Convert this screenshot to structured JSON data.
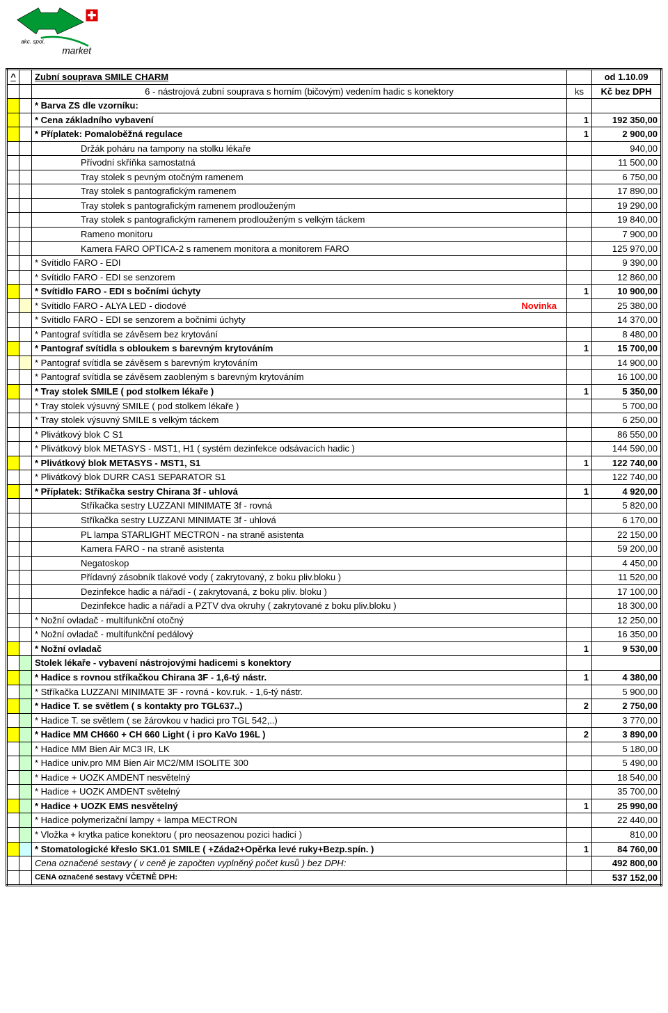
{
  "logo": {
    "top_text": "akc. spol.",
    "bottom_text": "market"
  },
  "colors": {
    "yellow": "#ffff00",
    "pale_yellow": "#ffffcc",
    "green_lt": "#ccffcc",
    "pale_blue": "#ccffff",
    "red": "#ff0000"
  },
  "header": {
    "caret": "^",
    "title": "Zubní souprava SMILE CHARM",
    "date": "od 1.10.09",
    "subtitle": "6 - nástrojová zubní souprava s horním (bičovým) vedením hadic s konektory",
    "unit": "ks",
    "price_label": "Kč bez DPH"
  },
  "novinka": "Novinka",
  "rows": [
    {
      "m1": "yellow",
      "m2": "",
      "desc": "* Barva ZS dle vzorníku:",
      "desc_bold": true,
      "qty": "",
      "price": ""
    },
    {
      "m1": "yellow",
      "m2": "",
      "desc": "* Cena základního vybavení",
      "desc_bold": true,
      "qty": "1",
      "price": "192 350,00",
      "bold": true
    },
    {
      "m1": "yellow",
      "m2": "",
      "desc": "* Příplatek:  Pomaloběžná regulace",
      "desc_bold": true,
      "qty": "1",
      "price": "2 900,00",
      "bold": true
    },
    {
      "m1": "",
      "m2": "",
      "desc": "Držák poháru na tampony na stolku lékaře",
      "indent": true,
      "qty": "",
      "price": "940,00"
    },
    {
      "m1": "",
      "m2": "",
      "desc": "Přívodní skříňka samostatná",
      "indent": true,
      "qty": "",
      "price": "11 500,00"
    },
    {
      "m1": "",
      "m2": "",
      "desc": "Tray stolek s pevným otočným ramenem",
      "indent": true,
      "qty": "",
      "price": "6 750,00"
    },
    {
      "m1": "",
      "m2": "",
      "desc": "Tray stolek s pantografickým ramenem",
      "indent": true,
      "qty": "",
      "price": "17 890,00"
    },
    {
      "m1": "",
      "m2": "",
      "desc": "Tray stolek s pantografickým ramenem prodlouženým",
      "indent": true,
      "qty": "",
      "price": "19 290,00"
    },
    {
      "m1": "",
      "m2": "",
      "desc": "Tray stolek s pantografickým ramenem prodlouženým s velkým táckem",
      "indent": true,
      "qty": "",
      "price": "19 840,00"
    },
    {
      "m1": "",
      "m2": "",
      "desc": "Rameno monitoru",
      "indent": true,
      "qty": "",
      "price": "7 900,00"
    },
    {
      "m1": "",
      "m2": "",
      "desc": "Kamera FARO OPTICA-2 s ramenem monitora a monitorem FARO",
      "indent": true,
      "qty": "",
      "price": "125 970,00"
    },
    {
      "m1": "",
      "m2": "",
      "desc": "* Svítidlo FARO - EDI",
      "qty": "",
      "price": "9 390,00"
    },
    {
      "m1": "",
      "m2": "",
      "desc": "* Svítidlo FARO - EDI se senzorem",
      "qty": "",
      "price": "12 860,00"
    },
    {
      "m1": "yellow",
      "m2": "",
      "desc": "* Svítidlo FARO - EDI s bočními úchyty",
      "desc_bold": true,
      "qty": "1",
      "price": "10 900,00",
      "bold": true
    },
    {
      "m1": "",
      "m2": "pale-yellow",
      "desc": "* Svítidlo FARO - ALYA LED - diodové",
      "novinka": true,
      "qty": "",
      "price": "25 380,00"
    },
    {
      "m1": "",
      "m2": "",
      "desc": "* Svítidlo FARO - EDI se senzorem a bočními úchyty",
      "qty": "",
      "price": "14 370,00"
    },
    {
      "m1": "",
      "m2": "",
      "desc": "* Pantograf svítidla se závěsem bez krytování",
      "qty": "",
      "price": "8 480,00"
    },
    {
      "m1": "yellow",
      "m2": "",
      "desc": "* Pantograf svítidla s obloukem s barevným krytováním",
      "desc_bold": true,
      "qty": "1",
      "price": "15 700,00",
      "bold": true
    },
    {
      "m1": "",
      "m2": "pale-yellow",
      "desc": "* Pantograf svítidla se závěsem s barevným krytováním",
      "qty": "",
      "price": "14 900,00"
    },
    {
      "m1": "",
      "m2": "",
      "desc": "* Pantograf svítidla se závěsem zaobleným s barevným krytováním",
      "qty": "",
      "price": "16 100,00"
    },
    {
      "m1": "yellow",
      "m2": "",
      "desc": "* Tray stolek SMILE ( pod stolkem lékaře )",
      "desc_bold": true,
      "qty": "1",
      "price": "5 350,00",
      "bold": true
    },
    {
      "m1": "",
      "m2": "",
      "desc": "* Tray stolek výsuvný SMILE ( pod stolkem lékaře )",
      "qty": "",
      "price": "5 700,00"
    },
    {
      "m1": "",
      "m2": "",
      "desc": "* Tray stolek výsuvný SMILE s velkým táckem",
      "qty": "",
      "price": "6 250,00"
    },
    {
      "m1": "",
      "m2": "",
      "desc": "* Plivátkový blok C S1",
      "qty": "",
      "price": "86 550,00"
    },
    {
      "m1": "",
      "m2": "",
      "desc": "* Plivátkový blok METASYS - MST1, H1 ( systém dezinfekce odsávacích hadic )",
      "qty": "",
      "price": "144 590,00"
    },
    {
      "m1": "yellow",
      "m2": "",
      "desc": "* Plivátkový blok METASYS - MST1, S1",
      "desc_bold": true,
      "qty": "1",
      "price": "122 740,00",
      "bold": true
    },
    {
      "m1": "",
      "m2": "",
      "desc": "* Plivátkový blok DURR CAS1 SEPARATOR S1",
      "qty": "",
      "price": "122 740,00"
    },
    {
      "m1": "yellow",
      "m2": "",
      "desc": "* Příplatek:  Stříkačka sestry Chirana 3f - uhlová",
      "desc_bold": true,
      "qty": "1",
      "price": "4 920,00",
      "bold": true
    },
    {
      "m1": "",
      "m2": "",
      "desc": "Stříkačka sestry LUZZANI MINIMATE 3f - rovná",
      "indent": true,
      "qty": "",
      "price": "5 820,00"
    },
    {
      "m1": "",
      "m2": "",
      "desc": "Stříkačka sestry LUZZANI MINIMATE 3f - uhlová",
      "indent": true,
      "qty": "",
      "price": "6 170,00"
    },
    {
      "m1": "",
      "m2": "",
      "desc": "PL lampa STARLIGHT MECTRON  - na straně asistenta",
      "indent": true,
      "qty": "",
      "price": "22 150,00"
    },
    {
      "m1": "",
      "m2": "",
      "desc": "Kamera FARO  - na straně asistenta",
      "indent": true,
      "qty": "",
      "price": "59 200,00"
    },
    {
      "m1": "",
      "m2": "",
      "desc": "Negatoskop",
      "indent": true,
      "qty": "",
      "price": "4 450,00"
    },
    {
      "m1": "",
      "m2": "",
      "desc": "Přídavný zásobník tlakové vody ( zakrytovaný, z boku pliv.bloku )",
      "indent": true,
      "qty": "",
      "price": "11 520,00"
    },
    {
      "m1": "",
      "m2": "",
      "desc": "Dezinfekce hadic a nářadí - ( zakrytovaná, z boku pliv. bloku )",
      "indent": true,
      "qty": "",
      "price": "17 100,00"
    },
    {
      "m1": "",
      "m2": "",
      "desc": "Dezinfekce hadic a nářadí a PZTV dva okruhy ( zakrytované z boku pliv.bloku )",
      "indent": true,
      "qty": "",
      "price": "18 300,00"
    },
    {
      "m1": "",
      "m2": "",
      "desc": "* Nožní ovladač - multifunkční otočný",
      "qty": "",
      "price": "12 250,00"
    },
    {
      "m1": "",
      "m2": "",
      "desc": "* Nožní ovladač - multifunkční pedálový",
      "qty": "",
      "price": "16 350,00"
    },
    {
      "m1": "yellow",
      "m2": "",
      "desc": "* Nožní ovladač",
      "desc_bold": true,
      "qty": "1",
      "price": "9 530,00",
      "bold": true
    }
  ],
  "section2_title": "Stolek lékaře - vybavení nástrojovými hadicemi s konektory",
  "rows2": [
    {
      "m1": "yellow",
      "m2": "green-lt",
      "desc": "* Hadice s rovnou stříkačkou Chirana 3F - 1,6-tý nástr.",
      "desc_bold": true,
      "qty": "1",
      "price": "4 380,00",
      "bold": true
    },
    {
      "m1": "",
      "m2": "green-lt",
      "desc": "* Stříkačka LUZZANI MINIMATE 3F - rovná - kov.ruk. - 1,6-tý nástr.",
      "qty": "",
      "price": "5 900,00"
    },
    {
      "m1": "yellow",
      "m2": "green-lt",
      "desc": "* Hadice T. se světlem ( s kontakty pro TGL637..)",
      "desc_bold": true,
      "qty": "2",
      "price": "2 750,00",
      "bold": true
    },
    {
      "m1": "",
      "m2": "green-lt",
      "desc": "* Hadice T. se světlem ( se žárovkou v hadici pro TGL 542,..)",
      "qty": "",
      "price": "3 770,00"
    },
    {
      "m1": "yellow",
      "m2": "green-lt",
      "desc": "* Hadice MM CH660 + CH 660 Light ( i pro KaVo 196L )",
      "desc_bold": true,
      "qty": "2",
      "price": "3 890,00",
      "bold": true
    },
    {
      "m1": "",
      "m2": "green-lt",
      "desc": "* Hadice MM Bien Air MC3 IR, LK",
      "qty": "",
      "price": "5 180,00"
    },
    {
      "m1": "",
      "m2": "green-lt",
      "desc": "* Hadice univ.pro MM Bien Air MC2/MM ISOLITE 300",
      "qty": "",
      "price": "5 490,00"
    },
    {
      "m1": "",
      "m2": "green-lt",
      "desc": "* Hadice + UOZK  AMDENT nesvětelný",
      "qty": "",
      "price": "18 540,00"
    },
    {
      "m1": "",
      "m2": "green-lt",
      "desc": "* Hadice + UOZK  AMDENT světelný",
      "qty": "",
      "price": "35 700,00"
    },
    {
      "m1": "yellow",
      "m2": "green-lt",
      "desc": "* Hadice + UOZK  EMS nesvětelný",
      "desc_bold": true,
      "qty": "1",
      "price": "25 990,00",
      "bold": true
    },
    {
      "m1": "",
      "m2": "green-lt",
      "desc": "* Hadice polymerizační lampy + lampa MECTRON",
      "qty": "",
      "price": "22 440,00"
    },
    {
      "m1": "",
      "m2": "green-lt",
      "desc": "* Vložka + krytka patice konektoru ( pro neosazenou pozici hadicí )",
      "qty": "",
      "price": "810,00"
    },
    {
      "m1": "yellow",
      "m2": "pale-blue",
      "desc": "* Stomatologické křeslo SK1.01 SMILE ( +Záda2+Opěrka levé ruky+Bezp.spín. )",
      "desc_bold": true,
      "qty": "1",
      "price": "84 760,00",
      "bold": true
    }
  ],
  "footer": {
    "line1_label": "Cena označené sestavy ( v ceně je započten vyplněný počet kusů ) bez DPH:",
    "line1_price": "492 800,00",
    "line2_label": "CENA označené sestavy VČETNĚ DPH:",
    "line2_price": "537 152,00"
  }
}
